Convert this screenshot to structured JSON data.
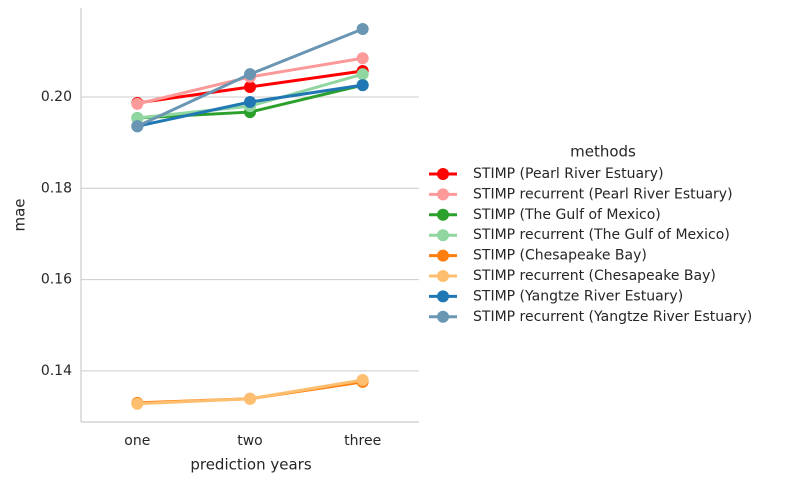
{
  "chart_data": {
    "type": "line",
    "x_label": "prediction years",
    "y_label": "mae",
    "legend_title": "methods",
    "categories": [
      "one",
      "two",
      "three"
    ],
    "ylim": [
      0.1288,
      0.2195
    ],
    "yticks": [
      0.14,
      0.16,
      0.18,
      {
        "value": 0.2,
        "label": "0.20"
      }
    ],
    "grid": true,
    "legend": "right",
    "series": [
      {
        "name": "STIMP (Pearl River Estuary)",
        "color": "#ff0000",
        "values": [
          0.1987,
          0.2022,
          0.2057
        ]
      },
      {
        "name": "STIMP recurrent (Pearl River Estuary)",
        "color": "#fb9a99",
        "values": [
          0.1985,
          0.2044,
          0.2085
        ]
      },
      {
        "name": "STIMP (The Gulf of Mexico)",
        "color": "#2ca02c",
        "values": [
          0.1954,
          0.1967,
          0.2026
        ]
      },
      {
        "name": "STIMP recurrent (The Gulf of Mexico)",
        "color": "#8fd6a0",
        "values": [
          0.1954,
          0.198,
          0.205
        ]
      },
      {
        "name": "STIMP (Chesapeake Bay)",
        "color": "#ff7f0e",
        "values": [
          0.133,
          0.1339,
          0.1376
        ]
      },
      {
        "name": "STIMP recurrent (Chesapeake Bay)",
        "color": "#fdbf6f",
        "values": [
          0.1328,
          0.1339,
          0.138
        ]
      },
      {
        "name": "STIMP (Yangtze River Estuary)",
        "color": "#1f77b4",
        "values": [
          0.1936,
          0.1989,
          0.2026
        ]
      },
      {
        "name": "STIMP recurrent (Yangtze River Estuary)",
        "color": "#6a96b4",
        "values": [
          0.1936,
          0.205,
          0.2149
        ]
      }
    ]
  }
}
